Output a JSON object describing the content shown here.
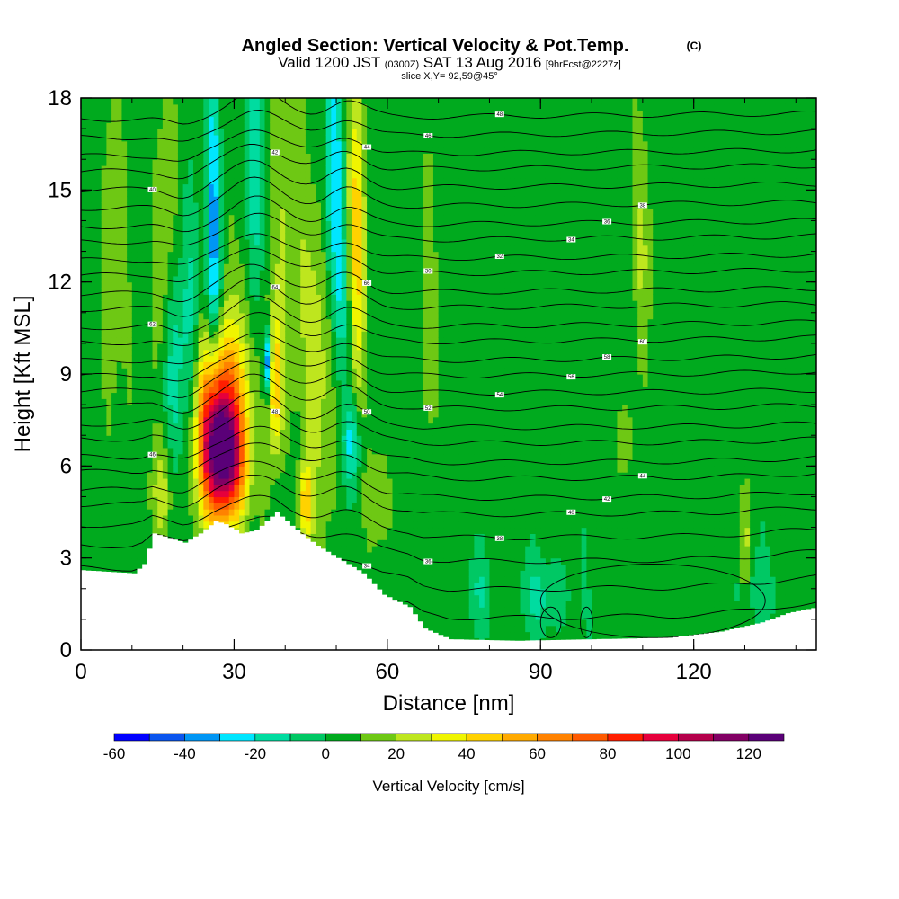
{
  "chart_data": {
    "type": "heatmap",
    "title": "Angled Section: Vertical Velocity & Pot.Temp.",
    "title_suffix": "(C)",
    "subtitle_parts": [
      "Valid 1200 JST",
      "(0300Z)",
      "SAT 13 Aug 2016",
      "[9hrFcst@2227z]"
    ],
    "slice_label": "slice X,Y= 92,59@45°",
    "xlabel": "Distance [nm]",
    "ylabel": "Height [Kft MSL]",
    "xlim": [
      0,
      144
    ],
    "ylim": [
      0,
      18
    ],
    "xticks": [
      0,
      30,
      60,
      90,
      120
    ],
    "yticks": [
      0,
      3,
      6,
      9,
      12,
      15,
      18
    ],
    "colorbar": {
      "label": "Vertical Velocity [cm/s]",
      "bounds": [
        -60,
        -50,
        -40,
        -30,
        -20,
        -10,
        0,
        10,
        20,
        30,
        40,
        50,
        60,
        70,
        80,
        90,
        100,
        110,
        120,
        130
      ],
      "colors": [
        "#0000ff",
        "#0a55ee",
        "#0096f5",
        "#00e6ff",
        "#00dca0",
        "#00c864",
        "#00aa1e",
        "#6ec814",
        "#bee61e",
        "#f0f500",
        "#ffd200",
        "#ffaa00",
        "#ff8200",
        "#ff5a00",
        "#ff1e00",
        "#e6003c",
        "#b4004b",
        "#820064",
        "#5a0078"
      ],
      "tick_values": [
        -60,
        -40,
        -20,
        0,
        20,
        40,
        60,
        80,
        100,
        120
      ],
      "tick_labels": [
        "-60",
        "-40",
        "-20",
        "0",
        "20",
        "40",
        "60",
        "80",
        "100",
        "120"
      ]
    },
    "background_velocity": 5,
    "velocity_features": [
      {
        "x": 6,
        "z": 12,
        "sx": 1.5,
        "sz": 4,
        "v": 13
      },
      {
        "x": 16,
        "z": 13,
        "sx": 1.5,
        "sz": 3,
        "v": 18
      },
      {
        "x": 18.5,
        "z": 9.5,
        "sx": 1.5,
        "sz": 2.5,
        "v": -22
      },
      {
        "x": 16,
        "z": 5.2,
        "sx": 1.5,
        "sz": 1.2,
        "v": 22
      },
      {
        "x": 21.5,
        "z": 10.5,
        "sx": 1.2,
        "sz": 3,
        "v": -18
      },
      {
        "x": 26,
        "z": 6.5,
        "sx": 2.3,
        "sz": 1.6,
        "v": 95
      },
      {
        "x": 29.5,
        "z": 6.2,
        "sx": 2.3,
        "sz": 1.4,
        "v": 78
      },
      {
        "x": 27.5,
        "z": 8.8,
        "sx": 3.2,
        "sz": 1.6,
        "v": 45
      },
      {
        "x": 26,
        "z": 13.5,
        "sx": 1,
        "sz": 4,
        "v": -38
      },
      {
        "x": 34,
        "z": 14,
        "sx": 1.3,
        "sz": 5,
        "v": -28
      },
      {
        "x": 33.5,
        "z": 10,
        "sx": 2.8,
        "sz": 3,
        "v": 15
      },
      {
        "x": 36.5,
        "z": 9.3,
        "sx": 0.6,
        "sz": 0.8,
        "v": -55
      },
      {
        "x": 38,
        "z": 8.6,
        "sx": 1,
        "sz": 1.5,
        "v": 42
      },
      {
        "x": 40,
        "z": 13,
        "sx": 2.5,
        "sz": 4,
        "v": 14
      },
      {
        "x": 44,
        "z": 4.8,
        "sx": 0.9,
        "sz": 0.9,
        "v": 42
      },
      {
        "x": 47,
        "z": 10,
        "sx": 2.5,
        "sz": 4,
        "v": 20
      },
      {
        "x": 49.5,
        "z": 15.5,
        "sx": 1.2,
        "sz": 3,
        "v": -38
      },
      {
        "x": 51,
        "z": 11.5,
        "sx": 1.2,
        "sz": 2,
        "v": -22
      },
      {
        "x": 54,
        "z": 13.5,
        "sx": 1.2,
        "sz": 3.5,
        "v": 38
      },
      {
        "x": 53,
        "z": 6.8,
        "sx": 1.3,
        "sz": 1,
        "v": -28
      },
      {
        "x": 58,
        "z": 5,
        "sx": 1.5,
        "sz": 1,
        "v": 14
      },
      {
        "x": 68,
        "z": 12,
        "sx": 1,
        "sz": 3,
        "v": 14
      },
      {
        "x": 78,
        "z": 2,
        "sx": 1.5,
        "sz": 1,
        "v": -14
      },
      {
        "x": 91,
        "z": 1.8,
        "sx": 3.5,
        "sz": 0.9,
        "v": -17
      },
      {
        "x": 107,
        "z": 7,
        "sx": 1,
        "sz": 0.9,
        "v": 14
      },
      {
        "x": 110,
        "z": 13,
        "sx": 1.2,
        "sz": 2.5,
        "v": 14
      },
      {
        "x": 130,
        "z": 3,
        "sx": 0.9,
        "sz": 1.6,
        "v": 22
      },
      {
        "x": 131,
        "z": 2,
        "sx": 3.5,
        "sz": 0.9,
        "v": -13
      }
    ],
    "terrain": {
      "x": [
        0,
        10,
        12,
        14,
        20,
        23,
        26,
        28,
        31,
        34,
        38,
        42,
        46,
        50,
        55,
        59,
        64,
        67,
        72,
        85,
        100,
        115,
        125,
        133,
        138,
        144
      ],
      "z": [
        2.6,
        2.5,
        2.8,
        3.8,
        3.5,
        3.8,
        4.2,
        4.1,
        3.8,
        3.9,
        4.5,
        3.9,
        3.4,
        3.0,
        2.5,
        1.8,
        1.4,
        0.7,
        0.35,
        0.3,
        0.35,
        0.4,
        0.6,
        0.9,
        1.2,
        1.4
      ]
    },
    "isentropes": {
      "base_heights": [
        1.0,
        1.7,
        2.5,
        3.3,
        4.0,
        4.7,
        5.2,
        5.8,
        6.3,
        6.9,
        7.4,
        8.0,
        8.5,
        9.1,
        9.6,
        10.2,
        10.7,
        11.3,
        11.8,
        12.4,
        12.9,
        13.5,
        14.0,
        14.6,
        15.2,
        15.8,
        16.3,
        16.9,
        17.5
      ],
      "labels": [
        "30",
        "32",
        "34",
        "36",
        "38",
        "40",
        "42",
        "44",
        "46",
        "48",
        "50",
        "52",
        "54",
        "56",
        "58",
        "60",
        "62",
        "64",
        "66"
      ],
      "label_x": [
        14,
        38,
        56,
        68,
        82,
        96,
        103,
        110
      ]
    }
  }
}
